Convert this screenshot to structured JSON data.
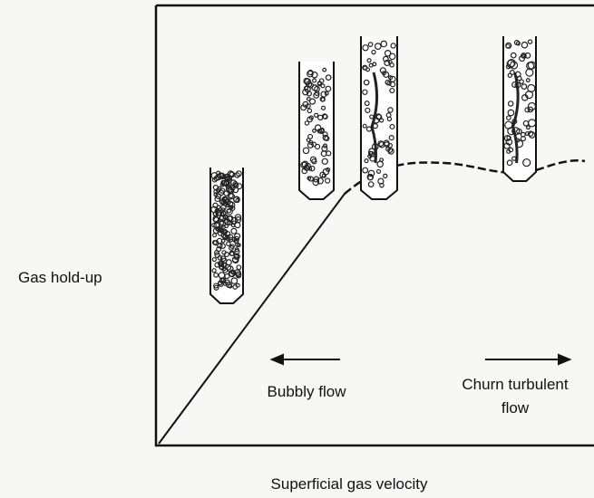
{
  "axes": {
    "y_label": "Gas hold-up",
    "x_label": "Superficial gas velocity"
  },
  "regimes": [
    {
      "label": "Bubbly flow"
    },
    {
      "label_lines": [
        "Churn turbulent",
        "flow"
      ]
    }
  ]
}
